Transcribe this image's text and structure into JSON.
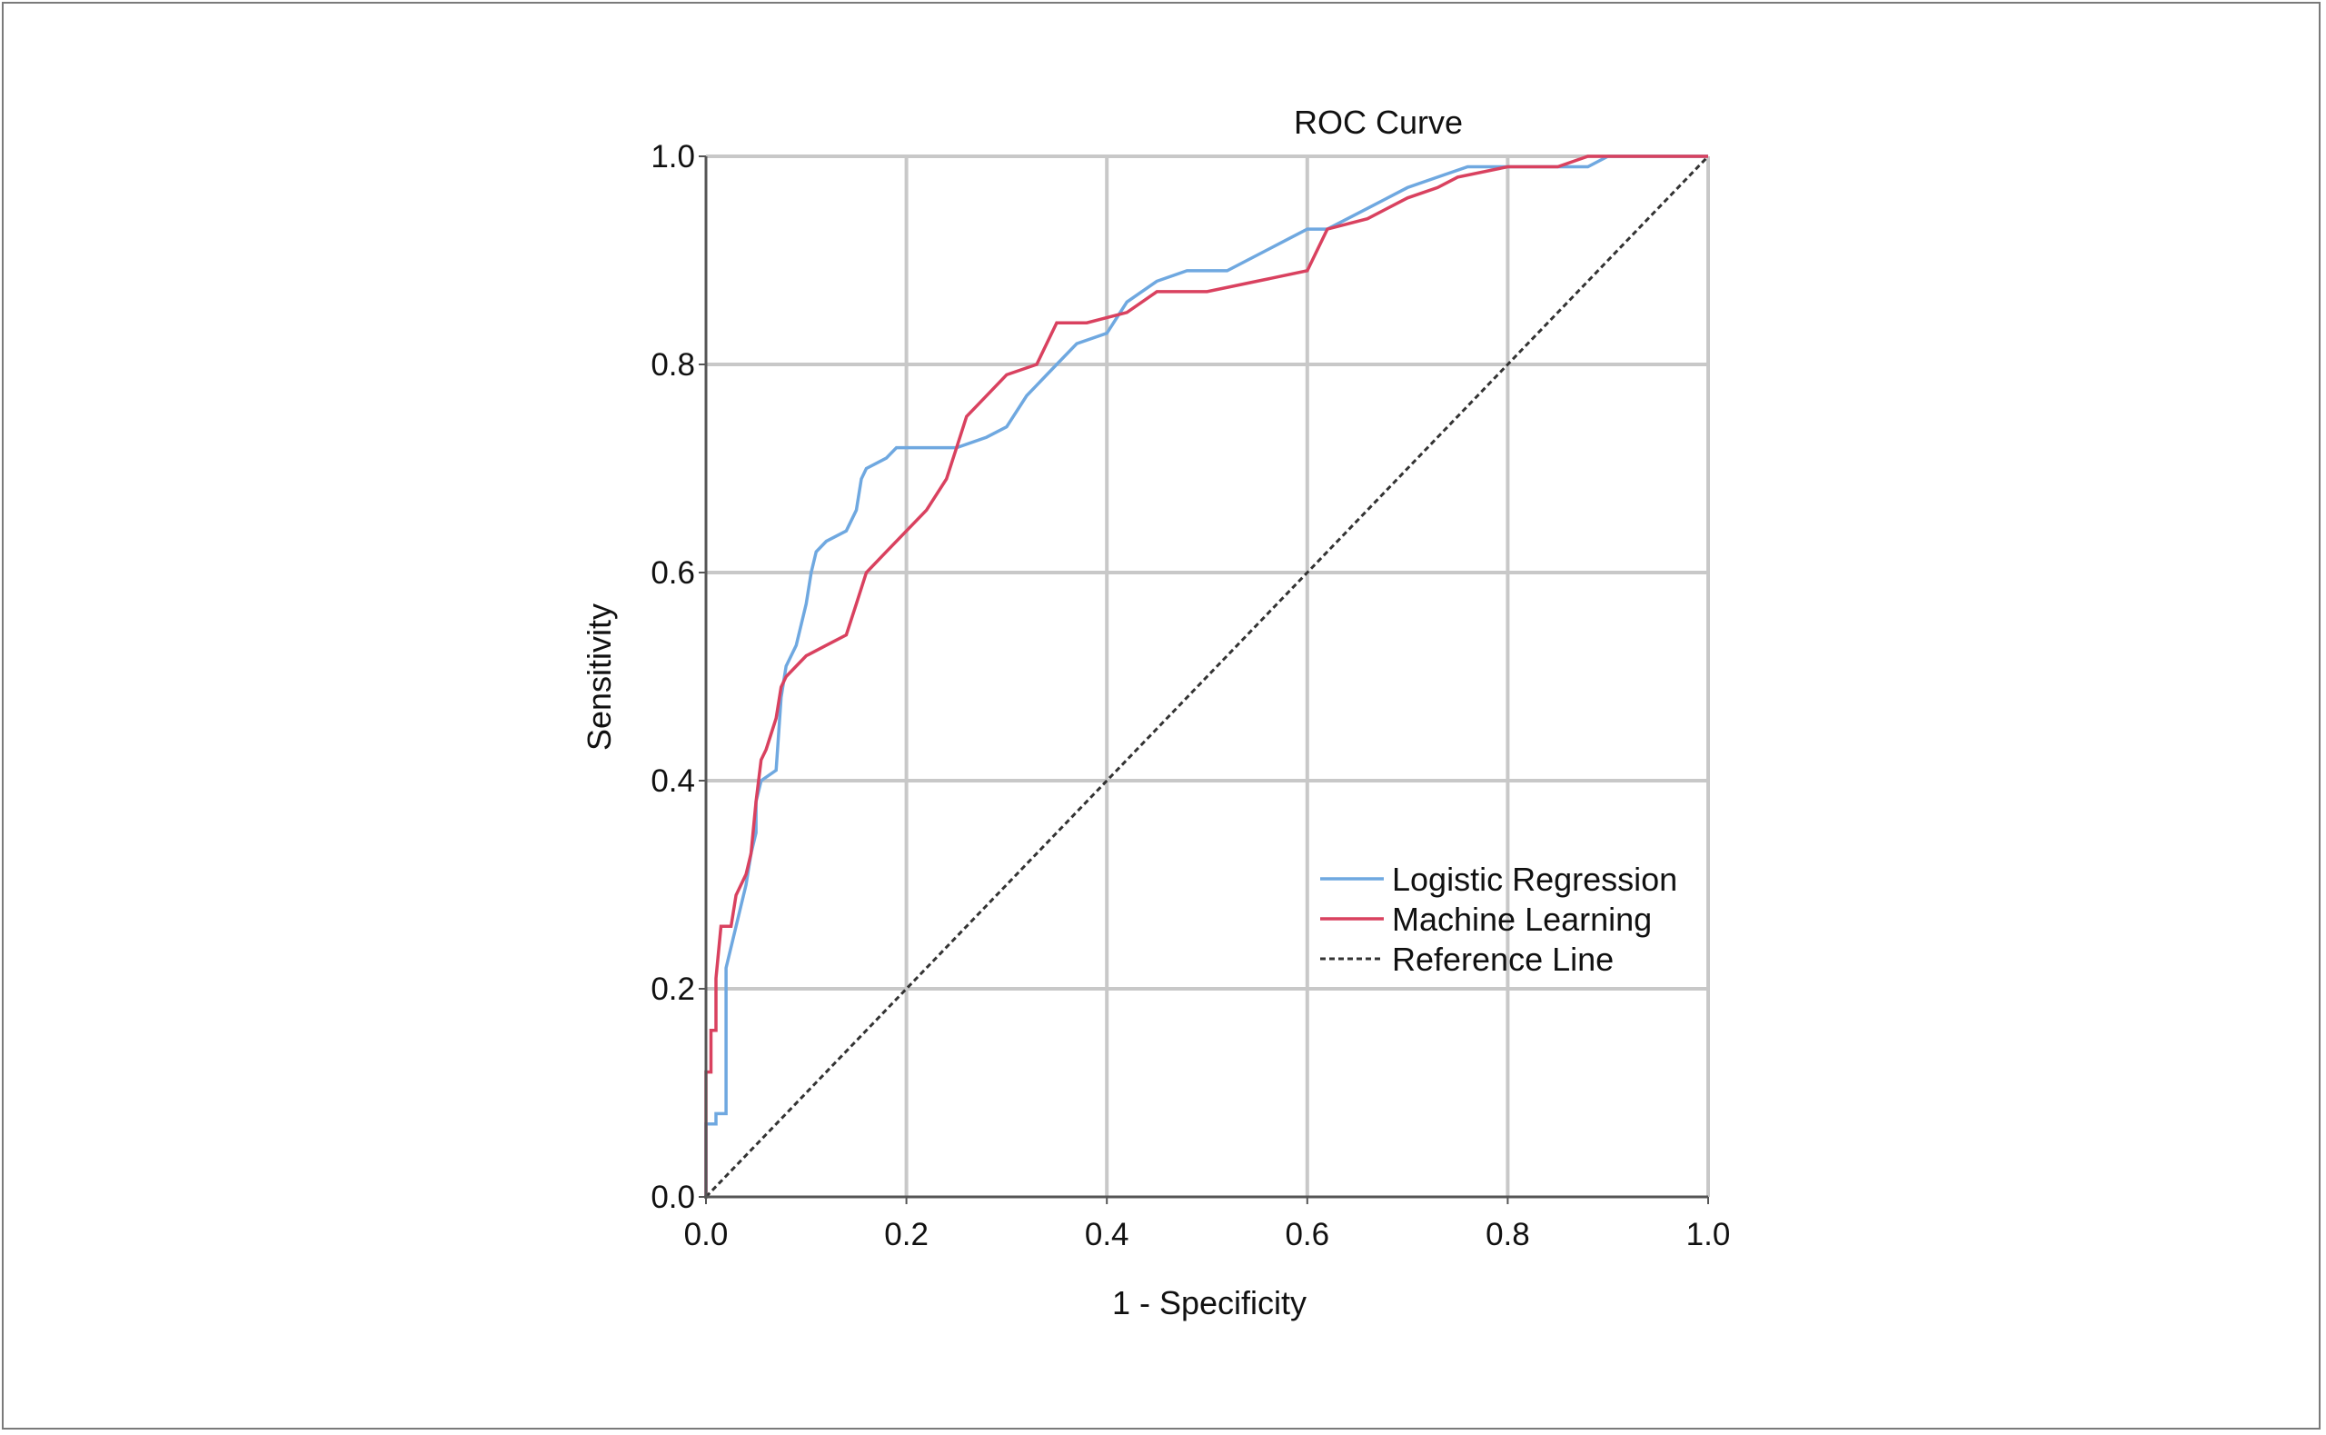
{
  "chart_data": {
    "type": "line",
    "title": "ROC Curve",
    "xlabel": "1 - Specificity",
    "ylabel": "Sensitivity",
    "xlim": [
      0,
      1
    ],
    "ylim": [
      0,
      1
    ],
    "x_ticks": [
      "0.0",
      "0.2",
      "0.4",
      "0.6",
      "0.8",
      "1.0"
    ],
    "y_ticks": [
      "0.0",
      "0.2",
      "0.4",
      "0.6",
      "0.8",
      "1.0"
    ],
    "grid": true,
    "legend_position": "bottom-right",
    "series": [
      {
        "name": "Logistic Regression",
        "color": "#6fa8e0",
        "dash": "solid",
        "points": [
          [
            0.0,
            0.0
          ],
          [
            0.0,
            0.07
          ],
          [
            0.01,
            0.07
          ],
          [
            0.01,
            0.08
          ],
          [
            0.02,
            0.08
          ],
          [
            0.02,
            0.22
          ],
          [
            0.03,
            0.26
          ],
          [
            0.035,
            0.28
          ],
          [
            0.04,
            0.3
          ],
          [
            0.045,
            0.33
          ],
          [
            0.05,
            0.35
          ],
          [
            0.05,
            0.38
          ],
          [
            0.055,
            0.4
          ],
          [
            0.07,
            0.41
          ],
          [
            0.075,
            0.48
          ],
          [
            0.08,
            0.51
          ],
          [
            0.09,
            0.53
          ],
          [
            0.1,
            0.57
          ],
          [
            0.105,
            0.6
          ],
          [
            0.11,
            0.62
          ],
          [
            0.12,
            0.63
          ],
          [
            0.14,
            0.64
          ],
          [
            0.15,
            0.66
          ],
          [
            0.155,
            0.69
          ],
          [
            0.16,
            0.7
          ],
          [
            0.18,
            0.71
          ],
          [
            0.19,
            0.72
          ],
          [
            0.2,
            0.72
          ],
          [
            0.22,
            0.72
          ],
          [
            0.25,
            0.72
          ],
          [
            0.28,
            0.73
          ],
          [
            0.3,
            0.74
          ],
          [
            0.32,
            0.77
          ],
          [
            0.33,
            0.78
          ],
          [
            0.35,
            0.8
          ],
          [
            0.37,
            0.82
          ],
          [
            0.4,
            0.83
          ],
          [
            0.42,
            0.86
          ],
          [
            0.45,
            0.88
          ],
          [
            0.48,
            0.89
          ],
          [
            0.52,
            0.89
          ],
          [
            0.56,
            0.91
          ],
          [
            0.58,
            0.92
          ],
          [
            0.6,
            0.93
          ],
          [
            0.62,
            0.93
          ],
          [
            0.66,
            0.95
          ],
          [
            0.7,
            0.97
          ],
          [
            0.73,
            0.98
          ],
          [
            0.76,
            0.99
          ],
          [
            0.8,
            0.99
          ],
          [
            0.88,
            0.99
          ],
          [
            0.9,
            1.0
          ],
          [
            0.95,
            1.0
          ],
          [
            1.0,
            1.0
          ]
        ]
      },
      {
        "name": "Machine Learning",
        "color": "#d9415f",
        "dash": "solid",
        "points": [
          [
            0.0,
            0.0
          ],
          [
            0.0,
            0.12
          ],
          [
            0.005,
            0.12
          ],
          [
            0.005,
            0.16
          ],
          [
            0.01,
            0.16
          ],
          [
            0.01,
            0.21
          ],
          [
            0.015,
            0.26
          ],
          [
            0.025,
            0.26
          ],
          [
            0.03,
            0.29
          ],
          [
            0.035,
            0.3
          ],
          [
            0.04,
            0.31
          ],
          [
            0.045,
            0.33
          ],
          [
            0.05,
            0.38
          ],
          [
            0.055,
            0.42
          ],
          [
            0.06,
            0.43
          ],
          [
            0.07,
            0.46
          ],
          [
            0.075,
            0.49
          ],
          [
            0.08,
            0.5
          ],
          [
            0.09,
            0.51
          ],
          [
            0.1,
            0.52
          ],
          [
            0.12,
            0.53
          ],
          [
            0.14,
            0.54
          ],
          [
            0.15,
            0.57
          ],
          [
            0.16,
            0.6
          ],
          [
            0.18,
            0.62
          ],
          [
            0.2,
            0.64
          ],
          [
            0.22,
            0.66
          ],
          [
            0.24,
            0.69
          ],
          [
            0.25,
            0.72
          ],
          [
            0.26,
            0.75
          ],
          [
            0.28,
            0.77
          ],
          [
            0.3,
            0.79
          ],
          [
            0.33,
            0.8
          ],
          [
            0.35,
            0.84
          ],
          [
            0.38,
            0.84
          ],
          [
            0.42,
            0.85
          ],
          [
            0.45,
            0.87
          ],
          [
            0.5,
            0.87
          ],
          [
            0.55,
            0.88
          ],
          [
            0.6,
            0.89
          ],
          [
            0.62,
            0.93
          ],
          [
            0.66,
            0.94
          ],
          [
            0.7,
            0.96
          ],
          [
            0.73,
            0.97
          ],
          [
            0.75,
            0.98
          ],
          [
            0.8,
            0.99
          ],
          [
            0.85,
            0.99
          ],
          [
            0.88,
            1.0
          ],
          [
            0.95,
            1.0
          ],
          [
            1.0,
            1.0
          ]
        ]
      },
      {
        "name": "Reference Line",
        "color": "#333333",
        "dash": "dashed",
        "points": [
          [
            0.0,
            0.0
          ],
          [
            1.0,
            1.0
          ]
        ]
      }
    ]
  }
}
